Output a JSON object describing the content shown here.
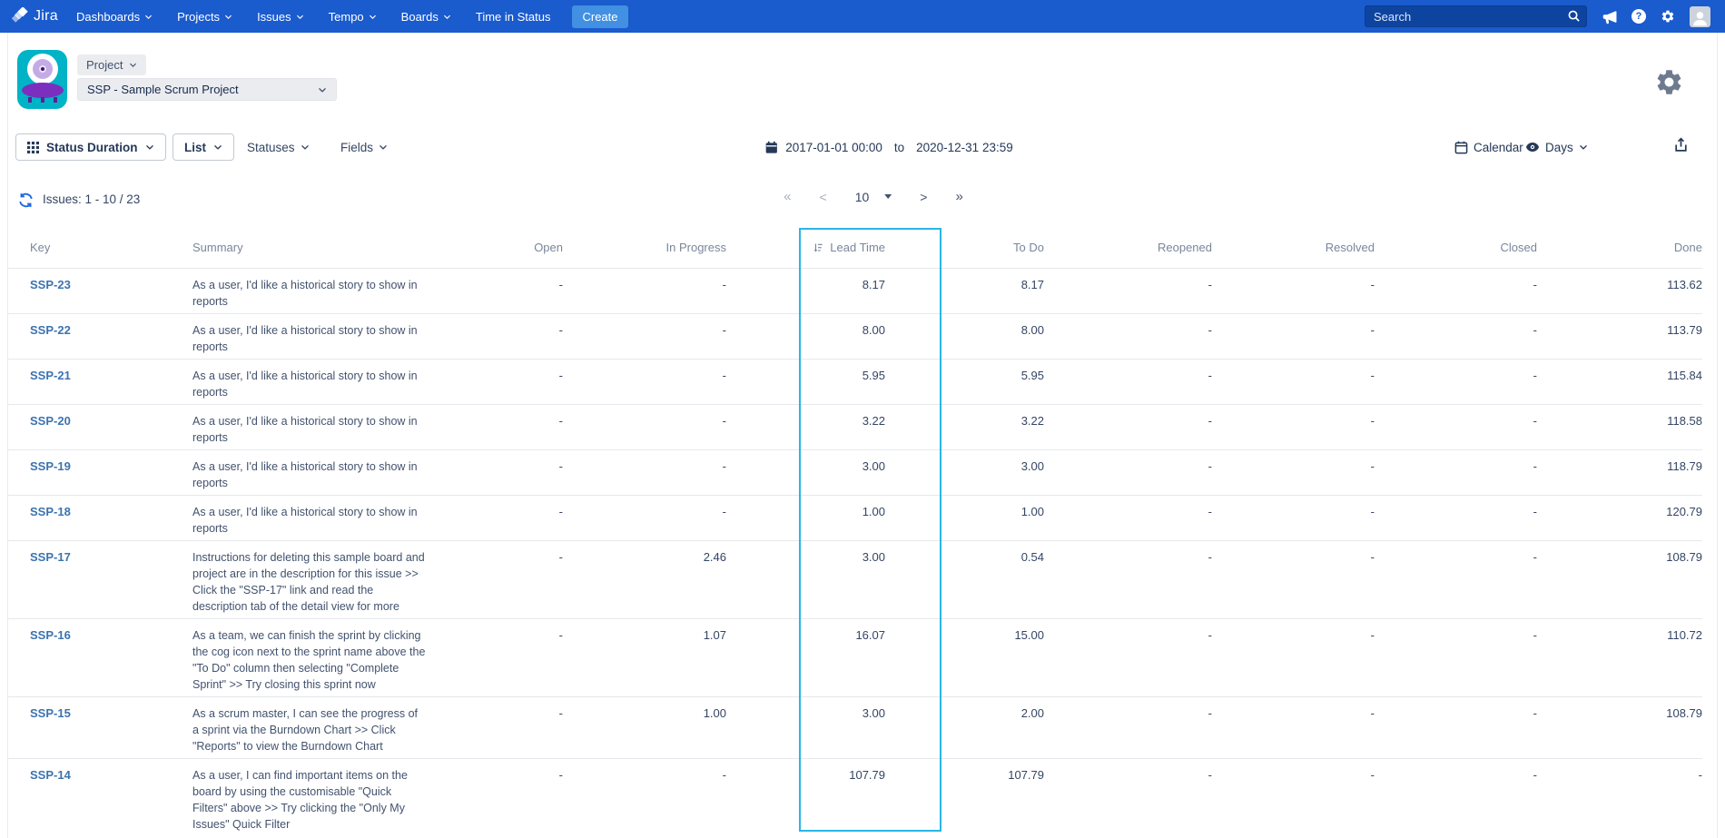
{
  "nav": {
    "brand": "Jira",
    "items": [
      {
        "label": "Dashboards",
        "chevron": true
      },
      {
        "label": "Projects",
        "chevron": true
      },
      {
        "label": "Issues",
        "chevron": true
      },
      {
        "label": "Tempo",
        "chevron": true
      },
      {
        "label": "Boards",
        "chevron": true
      },
      {
        "label": "Time in Status",
        "chevron": false
      }
    ],
    "create_label": "Create",
    "search_placeholder": "Search"
  },
  "header": {
    "project_button": "Project",
    "project_select": "SSP - Sample Scrum Project"
  },
  "toolbar": {
    "report_type": "Status Duration",
    "view": "List",
    "statuses": "Statuses",
    "fields": "Fields",
    "date_from": "2017-01-01 00:00",
    "date_to_word": "to",
    "date_to": "2020-12-31 23:59",
    "calendar": "Calendar",
    "unit": "Days"
  },
  "results": {
    "issues_label": "Issues: 1 - 10 / 23",
    "pagination": {
      "first": "«",
      "prev": "<",
      "page_size": "10",
      "next": ">",
      "last": "»"
    }
  },
  "table": {
    "columns": [
      {
        "label": "Key"
      },
      {
        "label": "Summary"
      },
      {
        "label": "Open"
      },
      {
        "label": "In Progress"
      },
      {
        "label": "Lead Time",
        "sorted": true
      },
      {
        "label": "To Do"
      },
      {
        "label": "Reopened"
      },
      {
        "label": "Resolved"
      },
      {
        "label": "Closed"
      },
      {
        "label": "Done"
      }
    ],
    "rows": [
      {
        "key": "SSP-23",
        "summary": "As a user, I'd like a historical story to show in reports",
        "values": [
          "-",
          "-",
          "8.17",
          "8.17",
          "-",
          "-",
          "-",
          "113.62"
        ]
      },
      {
        "key": "SSP-22",
        "summary": "As a user, I'd like a historical story to show in reports",
        "values": [
          "-",
          "-",
          "8.00",
          "8.00",
          "-",
          "-",
          "-",
          "113.79"
        ]
      },
      {
        "key": "SSP-21",
        "summary": "As a user, I'd like a historical story to show in reports",
        "values": [
          "-",
          "-",
          "5.95",
          "5.95",
          "-",
          "-",
          "-",
          "115.84"
        ]
      },
      {
        "key": "SSP-20",
        "summary": "As a user, I'd like a historical story to show in reports",
        "values": [
          "-",
          "-",
          "3.22",
          "3.22",
          "-",
          "-",
          "-",
          "118.58"
        ]
      },
      {
        "key": "SSP-19",
        "summary": "As a user, I'd like a historical story to show in reports",
        "values": [
          "-",
          "-",
          "3.00",
          "3.00",
          "-",
          "-",
          "-",
          "118.79"
        ]
      },
      {
        "key": "SSP-18",
        "summary": "As a user, I'd like a historical story to show in reports",
        "values": [
          "-",
          "-",
          "1.00",
          "1.00",
          "-",
          "-",
          "-",
          "120.79"
        ]
      },
      {
        "key": "SSP-17",
        "summary": "Instructions for deleting this sample board and project are in the description for this issue >> Click the \"SSP-17\" link and read the description tab of the detail view for more",
        "values": [
          "-",
          "2.46",
          "3.00",
          "0.54",
          "-",
          "-",
          "-",
          "108.79"
        ]
      },
      {
        "key": "SSP-16",
        "summary": "As a team, we can finish the sprint by clicking the cog icon next to the sprint name above the \"To Do\" column then selecting \"Complete Sprint\" >> Try closing this sprint now",
        "values": [
          "-",
          "1.07",
          "16.07",
          "15.00",
          "-",
          "-",
          "-",
          "110.72"
        ]
      },
      {
        "key": "SSP-15",
        "summary": "As a scrum master, I can see the progress of a sprint via the Burndown Chart >> Click \"Reports\" to view the Burndown Chart",
        "values": [
          "-",
          "1.00",
          "3.00",
          "2.00",
          "-",
          "-",
          "-",
          "108.79"
        ]
      },
      {
        "key": "SSP-14",
        "summary": "As a user, I can find important items on the board by using the customisable \"Quick Filters\" above >> Try clicking the \"Only My Issues\" Quick Filter",
        "values": [
          "-",
          "-",
          "107.79",
          "107.79",
          "-",
          "-",
          "-",
          "-"
        ]
      }
    ]
  },
  "colors": {
    "navbar_blue": "#1a5bce",
    "create_blue": "#4190e2",
    "highlight_cyan": "#29b5e8",
    "link_blue": "#3b73af",
    "app_icon_teal": "#00b3c7",
    "app_icon_purple": "#7b2fbe"
  }
}
